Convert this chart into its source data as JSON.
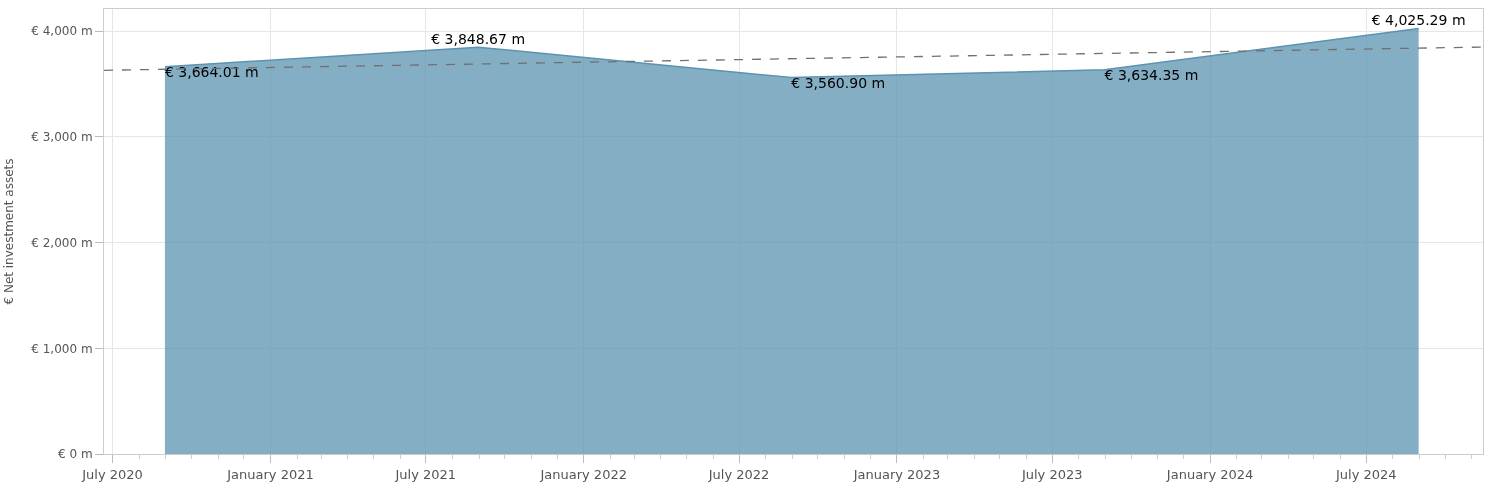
{
  "chart_data": {
    "type": "area",
    "ylabel": "€ Net investment assets",
    "x": [
      "2020-08-31",
      "2021-08-31",
      "2022-08-31",
      "2023-08-31",
      "2024-08-31"
    ],
    "series": [
      {
        "color": "#5b93b0",
        "values": [
          3664.01,
          3848.67,
          3560.9,
          3634.35,
          4025.29
        ],
        "value_labels": [
          "€ 3,664.01 m",
          "€ 3,848.67 m",
          "€ 3,560.90 m",
          "€ 3,634.35 m",
          "€ 4,025.29 m"
        ]
      },
      {
        "type": "line",
        "color": "#707070",
        "line_style": "dashed",
        "x": [
          "2020-06-21",
          "2024-11-14"
        ],
        "values": [
          3630,
          3850
        ]
      }
    ],
    "xlim": [
      "2020-06-21",
      "2024-11-14"
    ],
    "xticks": [
      {
        "value": "2020-07-01",
        "label": "July 2020"
      },
      {
        "value": "2021-01-01",
        "label": "January 2021"
      },
      {
        "value": "2021-07-01",
        "label": "July 2021"
      },
      {
        "value": "2022-01-01",
        "label": "January 2022"
      },
      {
        "value": "2022-07-01",
        "label": "July 2022"
      },
      {
        "value": "2023-01-01",
        "label": "January 2023"
      },
      {
        "value": "2023-07-01",
        "label": "July 2023"
      },
      {
        "value": "2024-01-01",
        "label": "January 2024"
      },
      {
        "value": "2024-07-01",
        "label": "July 2024"
      }
    ],
    "ylim": [
      0,
      4210
    ],
    "yticks": [
      {
        "value": 0,
        "label": "€ 0 m"
      },
      {
        "value": 1000,
        "label": "€ 1,000 m"
      },
      {
        "value": 2000,
        "label": "€ 2,000 m"
      },
      {
        "value": 3000,
        "label": "€ 3,000 m"
      },
      {
        "value": 4000,
        "label": "€ 4,000 m"
      }
    ],
    "grid": true
  }
}
